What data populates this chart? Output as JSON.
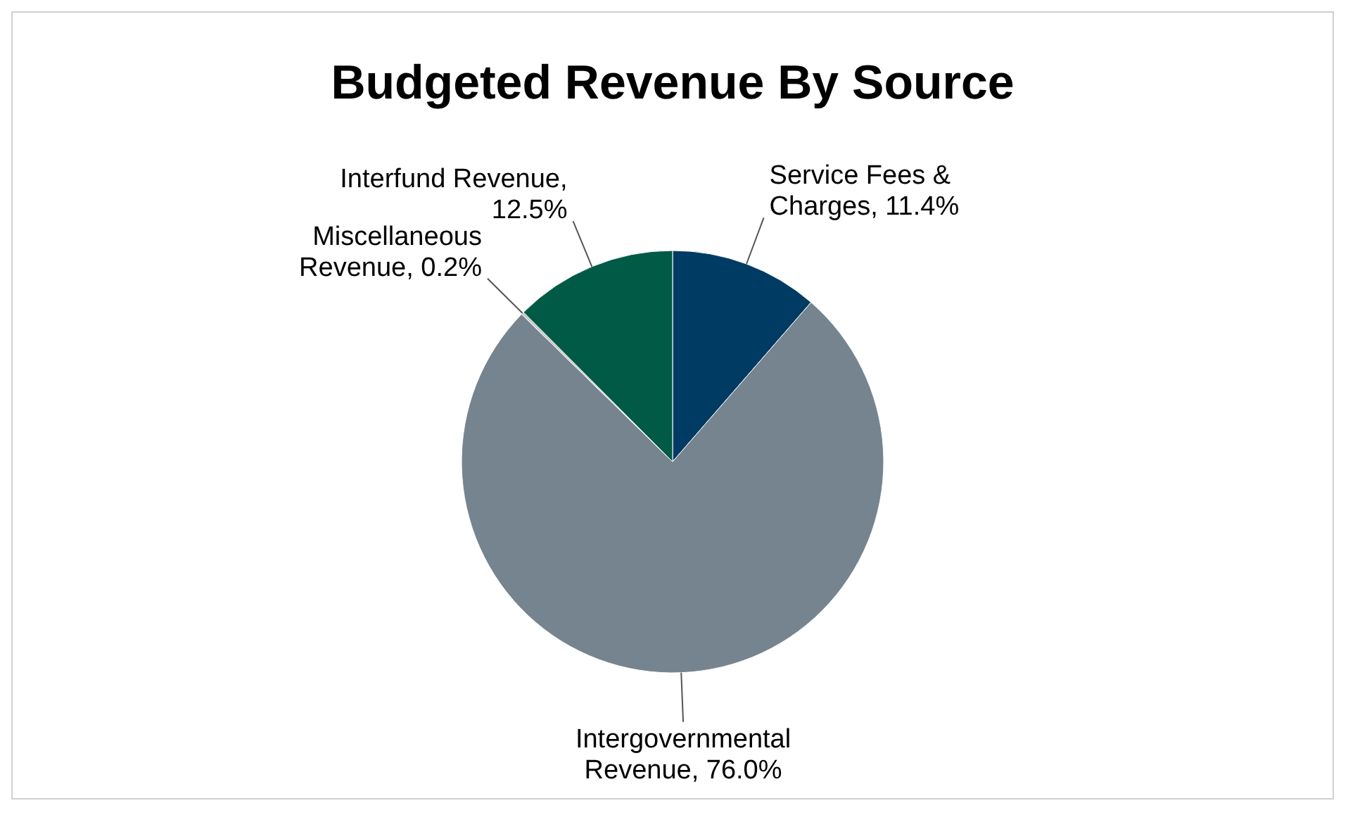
{
  "chart_data": {
    "type": "pie",
    "title": "Budgeted Revenue By Source",
    "categories": [
      "Service Fees & Charges",
      "Intergovernmental Revenue",
      "Miscellaneous Revenue",
      "Interfund Revenue"
    ],
    "values": [
      11.4,
      76.0,
      0.2,
      12.5
    ],
    "colors": [
      "#003b64",
      "#76848f",
      "#c8c8c8",
      "#005a46"
    ],
    "value_labels": [
      ", 11.4%",
      ", 76.0%",
      ", 0.2%",
      ", 12.5%"
    ]
  }
}
